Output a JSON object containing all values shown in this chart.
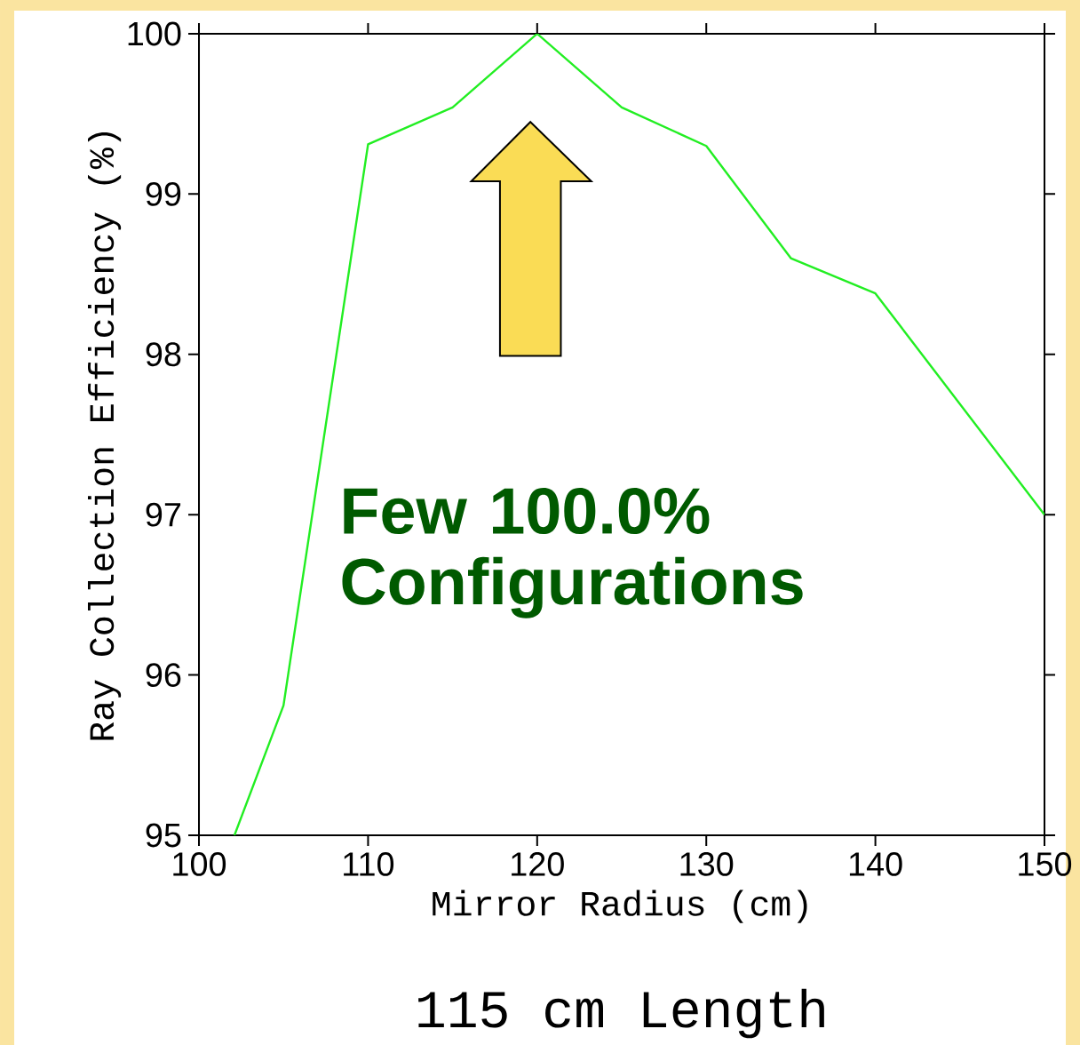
{
  "chart_data": {
    "type": "line",
    "title": "115 cm Length",
    "xlabel": "Mirror Radius (cm)",
    "ylabel": "Ray Collection Efficiency (%)",
    "series": [
      {
        "color": "#22ee22",
        "x": [
          102.1,
          105,
          110,
          115,
          120,
          125,
          130,
          135,
          140,
          150
        ],
        "values": [
          95.0,
          95.81,
          99.31,
          99.54,
          100.0,
          99.54,
          99.3,
          98.6,
          98.38,
          97.0
        ]
      }
    ],
    "xlim": [
      100,
      150
    ],
    "ylim": [
      95,
      100
    ],
    "xticks": [
      100,
      110,
      120,
      130,
      140,
      150
    ],
    "yticks": [
      95,
      96,
      97,
      98,
      99,
      100
    ],
    "annotations": [
      "Few 100.0% Configurations"
    ]
  }
}
